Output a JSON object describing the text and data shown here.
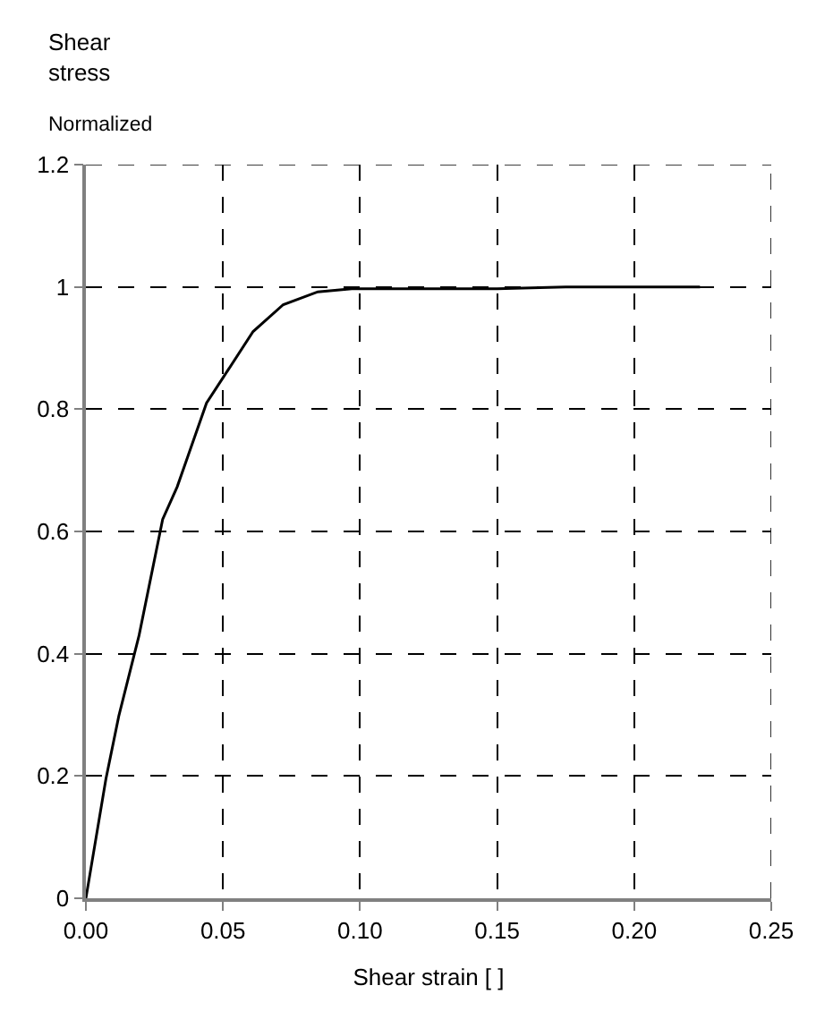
{
  "chart_data": {
    "type": "line",
    "ylabel": "Shear stress",
    "xlabel": "Shear strain [ ]",
    "annotations": [
      "Normalized"
    ],
    "x": [
      0,
      0.0073,
      0.012,
      0.0194,
      0.028,
      0.0333,
      0.044,
      0.0504,
      0.061,
      0.072,
      0.0846,
      0.097,
      0.12,
      0.15,
      0.175,
      0.224
    ],
    "series": [
      {
        "color": "#000000",
        "values": [
          0,
          0.195,
          0.298,
          0.43,
          0.62,
          0.673,
          0.81,
          0.854,
          0.927,
          0.971,
          0.992,
          0.997,
          0.997,
          0.997,
          1.0,
          1.0
        ]
      }
    ],
    "xlim": [
      0,
      0.25
    ],
    "xticks": [
      {
        "value": 0,
        "label": "0.00"
      },
      {
        "value": 0.05,
        "label": "0.05"
      },
      {
        "value": 0.1,
        "label": "0.10"
      },
      {
        "value": 0.15,
        "label": "0.15"
      },
      {
        "value": 0.2,
        "label": "0.20"
      },
      {
        "value": 0.25,
        "label": "0.25"
      }
    ],
    "ylim": [
      0,
      1.2
    ],
    "yticks": [
      0,
      0.2,
      0.4,
      0.6,
      0.8,
      1,
      1.2
    ],
    "grid": true,
    "marker": "none",
    "line_style": "solid"
  }
}
